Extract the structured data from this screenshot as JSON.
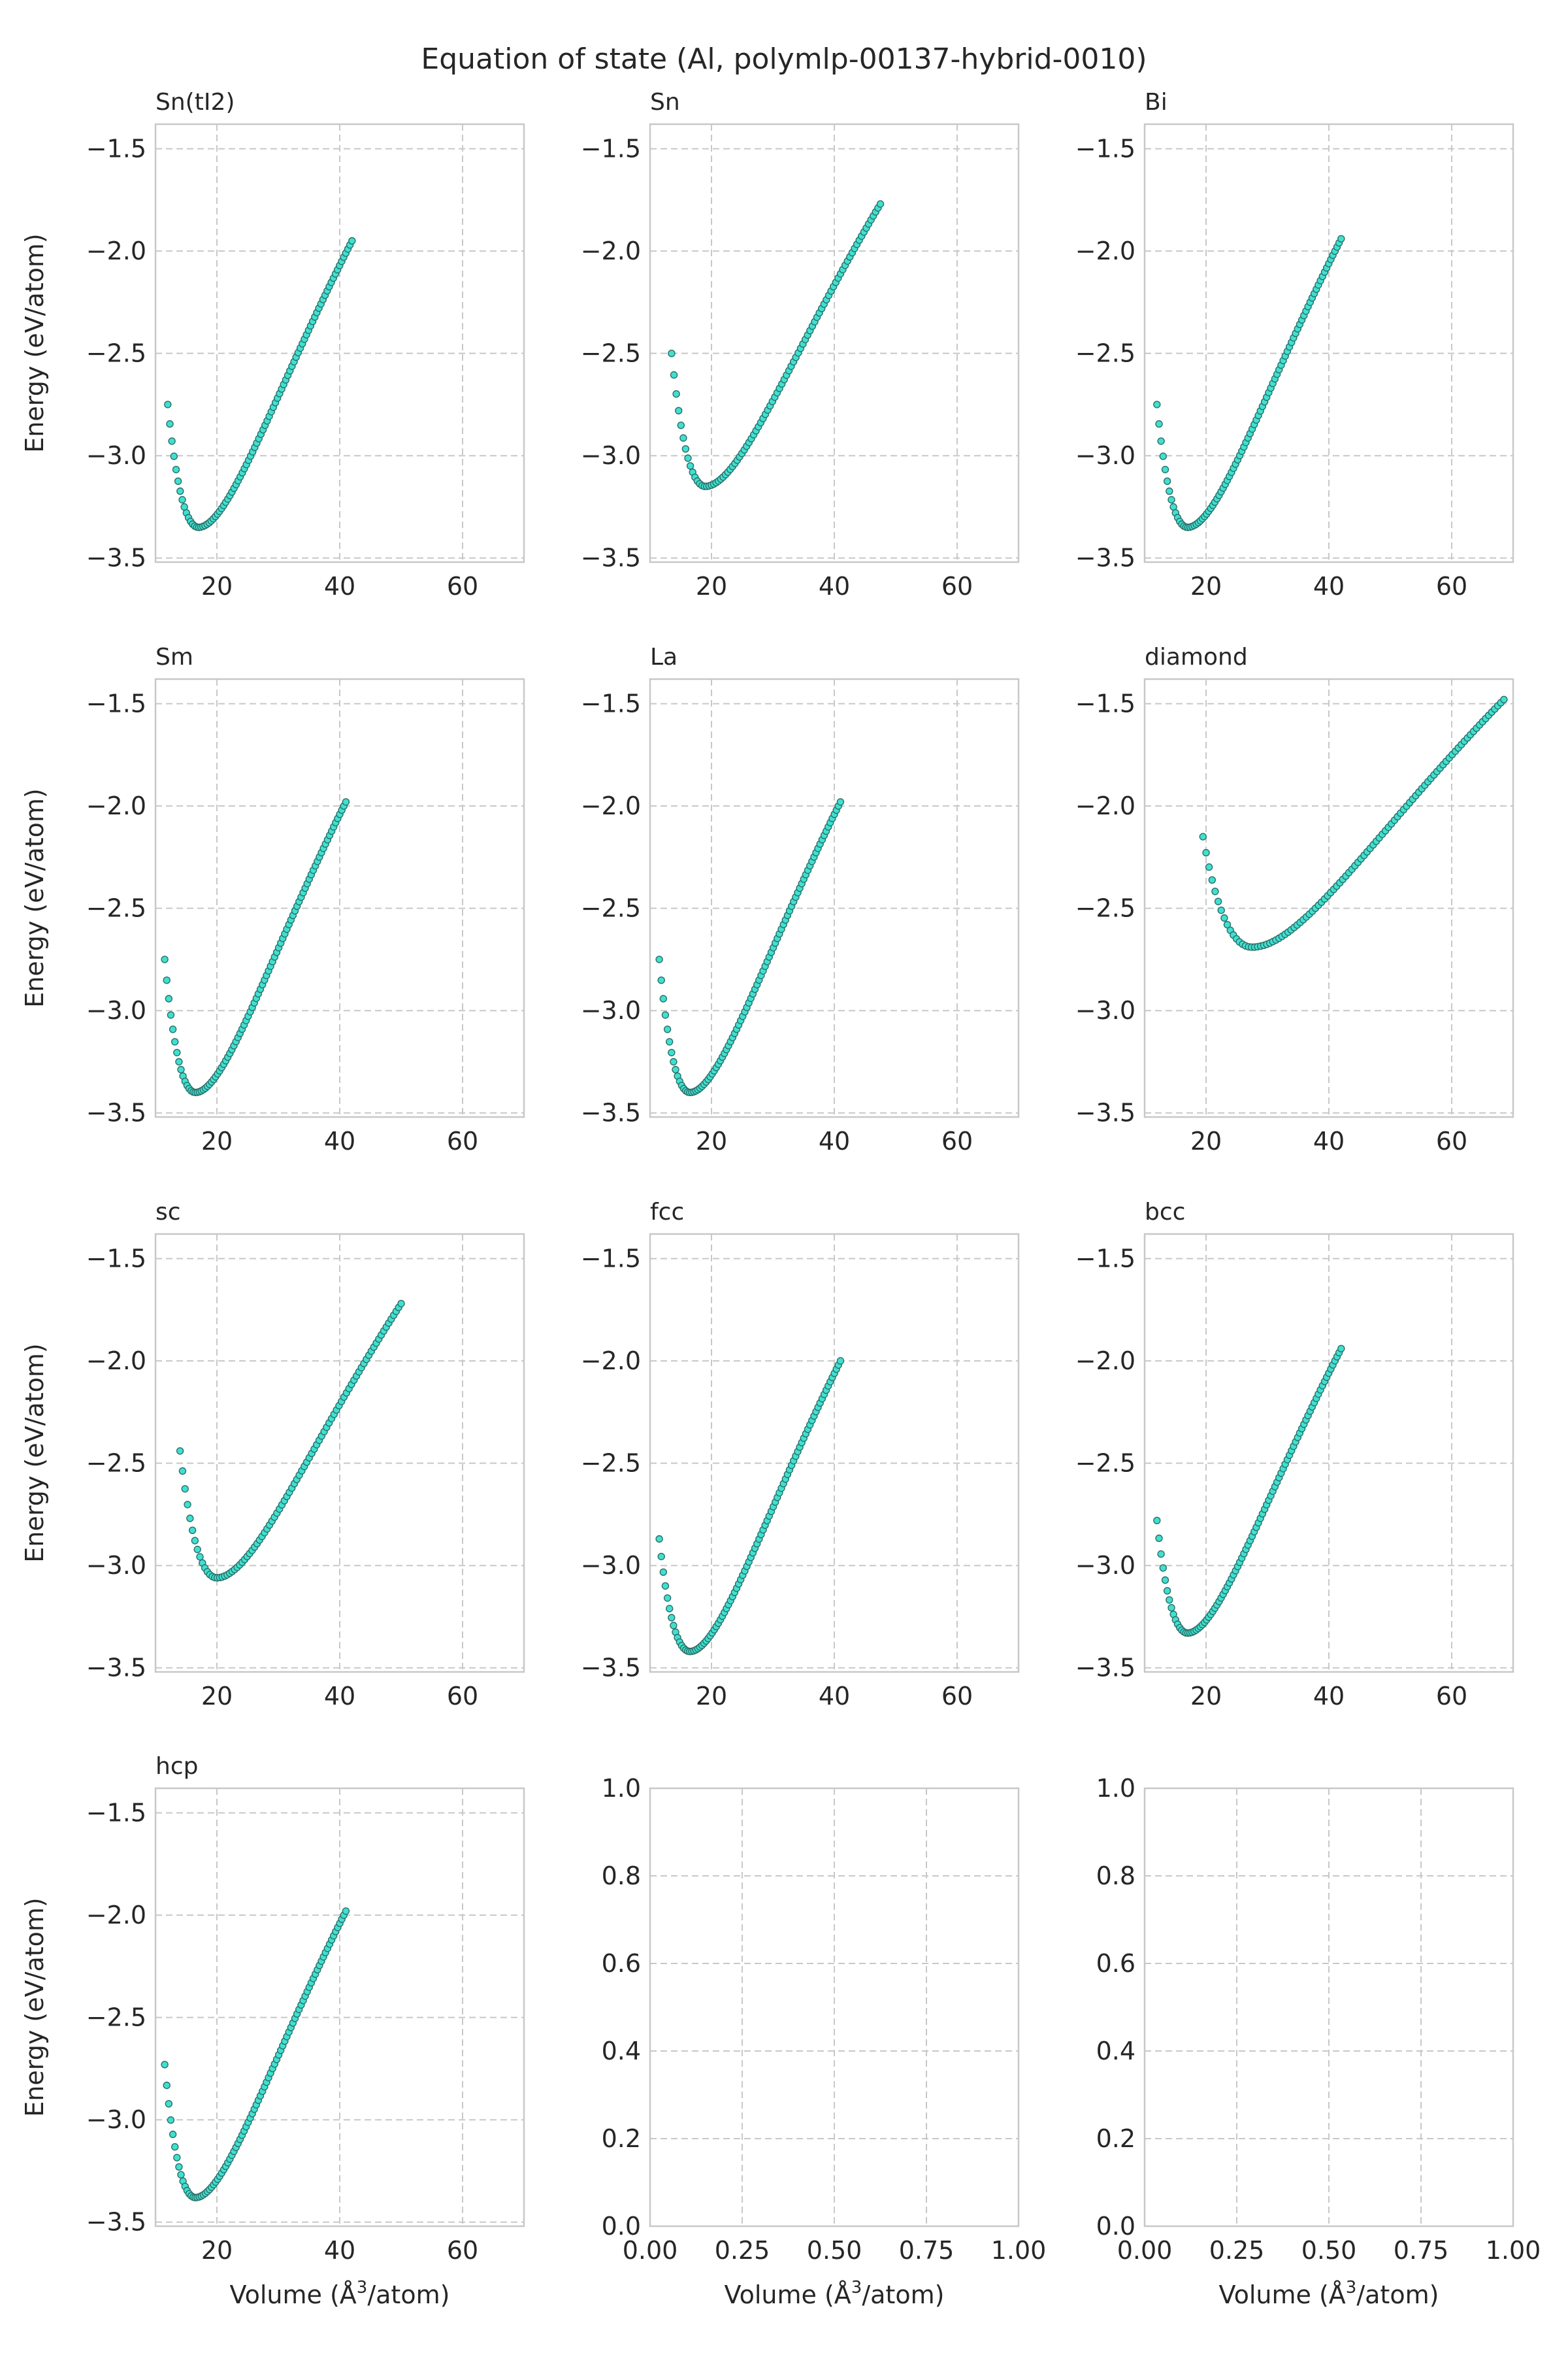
{
  "figure": {
    "title": "Equation of state (Al, polymlp-00137-hybrid-0010)",
    "marker_fill": "#40E0D0",
    "marker_edge": "#2a6f68",
    "grid_color": "#c8c8c8",
    "spine_color": "#c8c8c8",
    "energy_axis_label": "Energy (eV/atom)",
    "volume_axis_label_prefix": "Volume (",
    "volume_axis_label_unit": "Å",
    "volume_axis_label_exp": "3",
    "volume_axis_label_suffix": "/atom)"
  },
  "chart_data": [
    {
      "type": "scatter",
      "title": "Sn(tI2)",
      "xlim": [
        10,
        70
      ],
      "ylim": [
        -3.52,
        -1.38
      ],
      "xticks": [
        20,
        40,
        60
      ],
      "xtick_labels": [
        "20",
        "40",
        "60"
      ],
      "yticks": [
        -3.5,
        -3.0,
        -2.5,
        -2.0,
        -1.5
      ],
      "ytick_labels": [
        "−3.5",
        "−3.0",
        "−2.5",
        "−2.0",
        "−1.5"
      ],
      "ylabel": "Energy (eV/atom)",
      "xlabel": "",
      "curve": {
        "v_min": 12.0,
        "v_eq": 17.0,
        "v_max": 42.0,
        "e_start": -2.75,
        "e_min": -3.35,
        "e_end": -1.95,
        "n": 90
      }
    },
    {
      "type": "scatter",
      "title": "Sn",
      "xlim": [
        10,
        70
      ],
      "ylim": [
        -3.52,
        -1.38
      ],
      "xticks": [
        20,
        40,
        60
      ],
      "xtick_labels": [
        "20",
        "40",
        "60"
      ],
      "yticks": [
        -3.5,
        -3.0,
        -2.5,
        -2.0,
        -1.5
      ],
      "ytick_labels": [
        "−3.5",
        "−3.0",
        "−2.5",
        "−2.0",
        "−1.5"
      ],
      "ylabel": "",
      "xlabel": "",
      "curve": {
        "v_min": 13.5,
        "v_eq": 19.0,
        "v_max": 47.5,
        "e_start": -2.5,
        "e_min": -3.15,
        "e_end": -1.77,
        "n": 90
      }
    },
    {
      "type": "scatter",
      "title": "Bi",
      "xlim": [
        10,
        70
      ],
      "ylim": [
        -3.52,
        -1.38
      ],
      "xticks": [
        20,
        40,
        60
      ],
      "xtick_labels": [
        "20",
        "40",
        "60"
      ],
      "yticks": [
        -3.5,
        -3.0,
        -2.5,
        -2.0,
        -1.5
      ],
      "ytick_labels": [
        "−3.5",
        "−3.0",
        "−2.5",
        "−2.0",
        "−1.5"
      ],
      "ylabel": "",
      "xlabel": "",
      "curve": {
        "v_min": 12.0,
        "v_eq": 17.0,
        "v_max": 42.0,
        "e_start": -2.75,
        "e_min": -3.35,
        "e_end": -1.94,
        "n": 90
      }
    },
    {
      "type": "scatter",
      "title": "Sm",
      "xlim": [
        10,
        70
      ],
      "ylim": [
        -3.52,
        -1.38
      ],
      "xticks": [
        20,
        40,
        60
      ],
      "xtick_labels": [
        "20",
        "40",
        "60"
      ],
      "yticks": [
        -3.5,
        -3.0,
        -2.5,
        -2.0,
        -1.5
      ],
      "ytick_labels": [
        "−3.5",
        "−3.0",
        "−2.5",
        "−2.0",
        "−1.5"
      ],
      "ylabel": "Energy (eV/atom)",
      "xlabel": "",
      "curve": {
        "v_min": 11.5,
        "v_eq": 16.5,
        "v_max": 41.0,
        "e_start": -2.75,
        "e_min": -3.4,
        "e_end": -1.98,
        "n": 90
      }
    },
    {
      "type": "scatter",
      "title": "La",
      "xlim": [
        10,
        70
      ],
      "ylim": [
        -3.52,
        -1.38
      ],
      "xticks": [
        20,
        40,
        60
      ],
      "xtick_labels": [
        "20",
        "40",
        "60"
      ],
      "yticks": [
        -3.5,
        -3.0,
        -2.5,
        -2.0,
        -1.5
      ],
      "ytick_labels": [
        "−3.5",
        "−3.0",
        "−2.5",
        "−2.0",
        "−1.5"
      ],
      "ylabel": "",
      "xlabel": "",
      "curve": {
        "v_min": 11.5,
        "v_eq": 16.5,
        "v_max": 41.0,
        "e_start": -2.75,
        "e_min": -3.4,
        "e_end": -1.98,
        "n": 90
      }
    },
    {
      "type": "scatter",
      "title": "diamond",
      "xlim": [
        10,
        70
      ],
      "ylim": [
        -3.52,
        -1.38
      ],
      "xticks": [
        20,
        40,
        60
      ],
      "xtick_labels": [
        "20",
        "40",
        "60"
      ],
      "yticks": [
        -3.5,
        -3.0,
        -2.5,
        -2.0,
        -1.5
      ],
      "ytick_labels": [
        "−3.5",
        "−3.0",
        "−2.5",
        "−2.0",
        "−1.5"
      ],
      "ylabel": "",
      "xlabel": "",
      "curve": {
        "v_min": 19.5,
        "v_eq": 27.5,
        "v_max": 68.5,
        "e_start": -2.15,
        "e_min": -2.69,
        "e_end": -1.48,
        "n": 100
      }
    },
    {
      "type": "scatter",
      "title": "sc",
      "xlim": [
        10,
        70
      ],
      "ylim": [
        -3.52,
        -1.38
      ],
      "xticks": [
        20,
        40,
        60
      ],
      "xtick_labels": [
        "20",
        "40",
        "60"
      ],
      "yticks": [
        -3.5,
        -3.0,
        -2.5,
        -2.0,
        -1.5
      ],
      "ytick_labels": [
        "−3.5",
        "−3.0",
        "−2.5",
        "−2.0",
        "−1.5"
      ],
      "ylabel": "Energy (eV/atom)",
      "xlabel": "",
      "curve": {
        "v_min": 14.0,
        "v_eq": 20.0,
        "v_max": 50.0,
        "e_start": -2.44,
        "e_min": -3.06,
        "e_end": -1.72,
        "n": 90
      }
    },
    {
      "type": "scatter",
      "title": "fcc",
      "xlim": [
        10,
        70
      ],
      "ylim": [
        -3.52,
        -1.38
      ],
      "xticks": [
        20,
        40,
        60
      ],
      "xtick_labels": [
        "20",
        "40",
        "60"
      ],
      "yticks": [
        -3.5,
        -3.0,
        -2.5,
        -2.0,
        -1.5
      ],
      "ytick_labels": [
        "−3.5",
        "−3.0",
        "−2.5",
        "−2.0",
        "−1.5"
      ],
      "ylabel": "",
      "xlabel": "",
      "curve": {
        "v_min": 11.5,
        "v_eq": 16.5,
        "v_max": 41.0,
        "e_start": -2.87,
        "e_min": -3.42,
        "e_end": -2.0,
        "n": 90
      }
    },
    {
      "type": "scatter",
      "title": "bcc",
      "xlim": [
        10,
        70
      ],
      "ylim": [
        -3.52,
        -1.38
      ],
      "xticks": [
        20,
        40,
        60
      ],
      "xtick_labels": [
        "20",
        "40",
        "60"
      ],
      "yticks": [
        -3.5,
        -3.0,
        -2.5,
        -2.0,
        -1.5
      ],
      "ytick_labels": [
        "−3.5",
        "−3.0",
        "−2.5",
        "−2.0",
        "−1.5"
      ],
      "ylabel": "",
      "xlabel": "",
      "curve": {
        "v_min": 12.0,
        "v_eq": 17.0,
        "v_max": 42.0,
        "e_start": -2.78,
        "e_min": -3.33,
        "e_end": -1.94,
        "n": 90
      }
    },
    {
      "type": "scatter",
      "title": "hcp",
      "xlim": [
        10,
        70
      ],
      "ylim": [
        -3.52,
        -1.38
      ],
      "xticks": [
        20,
        40,
        60
      ],
      "xtick_labels": [
        "20",
        "40",
        "60"
      ],
      "yticks": [
        -3.5,
        -3.0,
        -2.5,
        -2.0,
        -1.5
      ],
      "ytick_labels": [
        "−3.5",
        "−3.0",
        "−2.5",
        "−2.0",
        "−1.5"
      ],
      "ylabel": "Energy (eV/atom)",
      "xlabel": "Volume (Å³/atom)",
      "curve": {
        "v_min": 11.5,
        "v_eq": 16.5,
        "v_max": 41.0,
        "e_start": -2.73,
        "e_min": -3.38,
        "e_end": -1.98,
        "n": 90
      }
    },
    {
      "type": "scatter",
      "title": "",
      "xlim": [
        0,
        1
      ],
      "ylim": [
        0,
        1
      ],
      "xticks": [
        0,
        0.25,
        0.5,
        0.75,
        1.0
      ],
      "xtick_labels": [
        "0.00",
        "0.25",
        "0.50",
        "0.75",
        "1.00"
      ],
      "yticks": [
        0,
        0.2,
        0.4,
        0.6,
        0.8,
        1.0
      ],
      "ytick_labels": [
        "0.0",
        "0.2",
        "0.4",
        "0.6",
        "0.8",
        "1.0"
      ],
      "ylabel": "",
      "xlabel": "Volume (Å³/atom)",
      "curve": null
    },
    {
      "type": "scatter",
      "title": "",
      "xlim": [
        0,
        1
      ],
      "ylim": [
        0,
        1
      ],
      "xticks": [
        0,
        0.25,
        0.5,
        0.75,
        1.0
      ],
      "xtick_labels": [
        "0.00",
        "0.25",
        "0.50",
        "0.75",
        "1.00"
      ],
      "yticks": [
        0,
        0.2,
        0.4,
        0.6,
        0.8,
        1.0
      ],
      "ytick_labels": [
        "0.0",
        "0.2",
        "0.4",
        "0.6",
        "0.8",
        "1.0"
      ],
      "ylabel": "",
      "xlabel": "Volume (Å³/atom)",
      "curve": null
    }
  ]
}
